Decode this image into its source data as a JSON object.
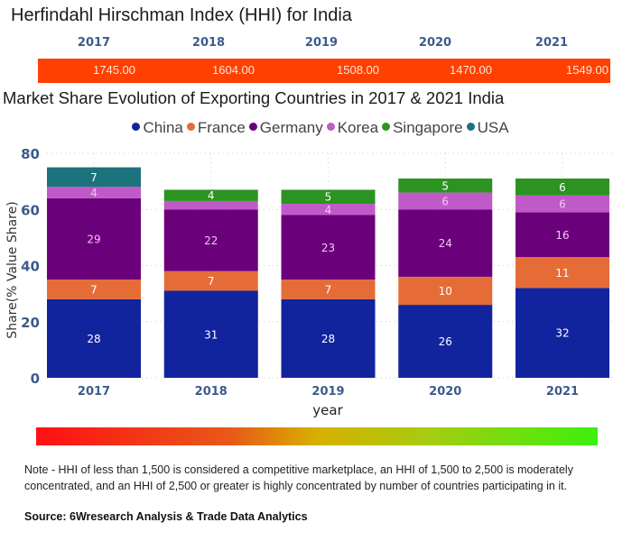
{
  "hhi": {
    "title": "Herfindahl Hirschman Index (HHI) for India",
    "years": [
      "2017",
      "2018",
      "2019",
      "2020",
      "2021"
    ],
    "values": [
      "1745.00",
      "1604.00",
      "1508.00",
      "1470.00",
      "1549.00"
    ],
    "bar_color": "#ff4000"
  },
  "chart_data": {
    "type": "bar",
    "stacked": true,
    "title": "Market Share Evolution of Exporting Countries in 2017 & 2021 India",
    "xlabel": "year",
    "ylabel": "Share(% Value Share)",
    "ylim": [
      0,
      80
    ],
    "yticks": [
      "0",
      "20",
      "40",
      "60",
      "80"
    ],
    "grid": true,
    "legend_position": "top-center",
    "categories": [
      "2017",
      "2018",
      "2019",
      "2020",
      "2021"
    ],
    "series": [
      {
        "name": "China",
        "color": "#12239e",
        "values": [
          28,
          31,
          28,
          26,
          32
        ],
        "labels": [
          "28",
          "31",
          "28",
          "26",
          "32"
        ]
      },
      {
        "name": "France",
        "color": "#e66c37",
        "values": [
          7,
          7,
          7,
          10,
          11
        ],
        "labels": [
          "7",
          "7",
          "7",
          "10",
          "11"
        ]
      },
      {
        "name": "Germany",
        "color": "#6b007b",
        "values": [
          29,
          22,
          23,
          24,
          16
        ],
        "labels": [
          "29",
          "22",
          "23",
          "24",
          "16"
        ]
      },
      {
        "name": "Korea",
        "color": "#c05ac8",
        "values": [
          4,
          3,
          4,
          6,
          6
        ],
        "labels": [
          "4",
          "",
          "4",
          "6",
          "6"
        ]
      },
      {
        "name": "Singapore",
        "color": "#2b9320",
        "values": [
          0,
          4,
          5,
          5,
          6
        ],
        "labels": [
          "",
          "4",
          "5",
          "5",
          "6"
        ]
      },
      {
        "name": "USA",
        "color": "#1c727d",
        "values": [
          7,
          0,
          0,
          0,
          0
        ],
        "labels": [
          "7",
          "",
          "",
          "",
          ""
        ]
      }
    ]
  },
  "gradient": {
    "from": "#ff0f14",
    "mid": "#d8b000",
    "to": "#3cf00e"
  },
  "footer": {
    "note": "Note - HHI of less than 1,500 is considered a competitive marketplace, an HHI of 1,500 to 2,500 is moderately concentrated, and an HHI of 2,500 or greater is highly concentrated by number of countries participating in it.",
    "source": "Source: 6Wresearch Analysis & Trade Data Analytics"
  }
}
